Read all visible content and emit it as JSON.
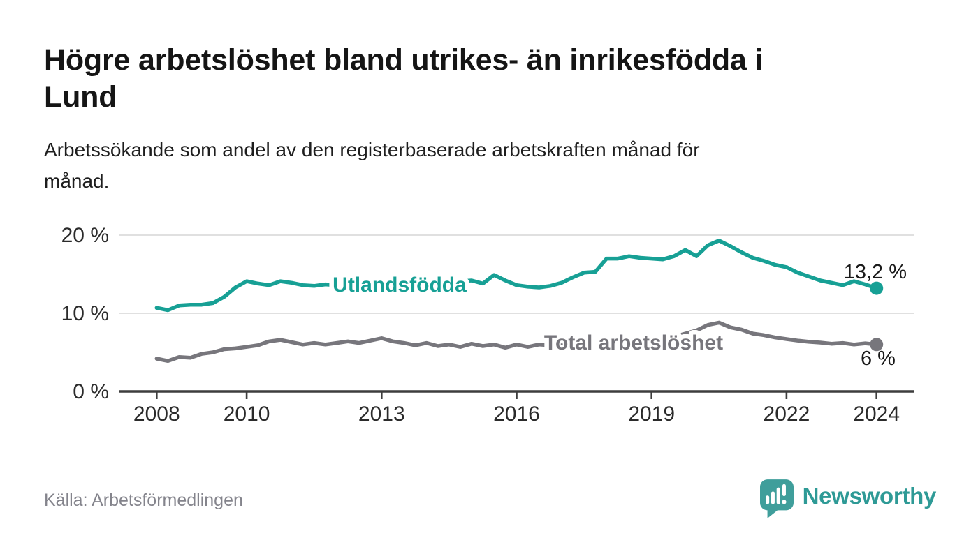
{
  "page": {
    "title": "Högre arbetslöshet bland utrikes- än inrikesfödda i Lund",
    "title_lines": [
      "Högre arbetslöshet bland utrikes- än inrikesfödda i",
      "Lund"
    ],
    "subtitle_lines": [
      "Arbetssökande som andel av den registerbaserade arbetskraften månad för",
      "månad."
    ],
    "source": "Källa: Arbetsförmedlingen",
    "logo_text": "Newsworthy"
  },
  "colors": {
    "series_foreign_born": "#17a095",
    "series_total": "#77767c",
    "axis": "#3d3d3d",
    "grid": "#dcdcdc",
    "end_label_text": "#1a1a1a",
    "logo_teal": "#3f9e9b",
    "logo_text_teal": "#2e9a96"
  },
  "chart_data": {
    "type": "line",
    "title": "Högre arbetslöshet bland utrikes- än inrikesfödda i Lund",
    "subtitle": "Arbetssökande som andel av den registerbaserade arbetskraften månad för månad.",
    "unit": "%",
    "xlabel": "",
    "ylabel": "",
    "x_range": [
      2007.2,
      2024.9
    ],
    "ylim": [
      0,
      20
    ],
    "grid": "horizontal",
    "legend_position": "inline-labels",
    "x_ticks": [
      {
        "v": 2008,
        "label": "2008"
      },
      {
        "v": 2010,
        "label": "2010"
      },
      {
        "v": 2013,
        "label": "2013"
      },
      {
        "v": 2016,
        "label": "2016"
      },
      {
        "v": 2019,
        "label": "2019"
      },
      {
        "v": 2022,
        "label": "2022"
      },
      {
        "v": 2024,
        "label": "2024"
      }
    ],
    "y_ticks": [
      {
        "v": 0,
        "label": "0 %"
      },
      {
        "v": 10,
        "label": "10 %"
      },
      {
        "v": 20,
        "label": "20 %"
      }
    ],
    "series": [
      {
        "name": "Utlandsfödda",
        "color": "#17a095",
        "end_label": "13,2 %",
        "last_value": 13.2,
        "points": [
          [
            2008,
            10.7
          ],
          [
            2008.25,
            10.4
          ],
          [
            2008.5,
            11
          ],
          [
            2008.75,
            11.1
          ],
          [
            2009,
            11.1
          ],
          [
            2009.25,
            11.3
          ],
          [
            2009.5,
            12.1
          ],
          [
            2009.75,
            13.3
          ],
          [
            2010,
            14.1
          ],
          [
            2010.25,
            13.8
          ],
          [
            2010.5,
            13.6
          ],
          [
            2010.75,
            14.1
          ],
          [
            2011,
            13.9
          ],
          [
            2011.25,
            13.6
          ],
          [
            2011.5,
            13.5
          ],
          [
            2011.75,
            13.7
          ],
          [
            2012,
            13.6
          ],
          [
            2012.25,
            13.4
          ],
          [
            2012.5,
            13.6
          ],
          [
            2012.75,
            13.5
          ],
          [
            2013,
            13.7
          ],
          [
            2013.25,
            13.6
          ],
          [
            2013.5,
            13.8
          ],
          [
            2013.75,
            13.7
          ],
          [
            2014,
            13.9
          ],
          [
            2014.25,
            13.8
          ],
          [
            2014.5,
            14
          ],
          [
            2014.75,
            14.1
          ],
          [
            2015,
            14.2
          ],
          [
            2015.25,
            13.8
          ],
          [
            2015.5,
            14.9
          ],
          [
            2015.75,
            14.2
          ],
          [
            2016,
            13.6
          ],
          [
            2016.25,
            13.4
          ],
          [
            2016.5,
            13.3
          ],
          [
            2016.75,
            13.5
          ],
          [
            2017,
            13.9
          ],
          [
            2017.25,
            14.6
          ],
          [
            2017.5,
            15.2
          ],
          [
            2017.75,
            15.3
          ],
          [
            2018,
            17
          ],
          [
            2018.25,
            17
          ],
          [
            2018.5,
            17.3
          ],
          [
            2018.75,
            17.1
          ],
          [
            2019,
            17
          ],
          [
            2019.25,
            16.9
          ],
          [
            2019.5,
            17.3
          ],
          [
            2019.75,
            18.1
          ],
          [
            2020,
            17.3
          ],
          [
            2020.25,
            18.7
          ],
          [
            2020.5,
            19.3
          ],
          [
            2020.75,
            18.6
          ],
          [
            2021,
            17.8
          ],
          [
            2021.25,
            17.1
          ],
          [
            2021.5,
            16.7
          ],
          [
            2021.75,
            16.2
          ],
          [
            2022,
            15.9
          ],
          [
            2022.25,
            15.2
          ],
          [
            2022.5,
            14.7
          ],
          [
            2022.75,
            14.2
          ],
          [
            2023,
            13.9
          ],
          [
            2023.25,
            13.6
          ],
          [
            2023.5,
            14.1
          ],
          [
            2023.75,
            13.7
          ],
          [
            2024,
            13.2
          ]
        ]
      },
      {
        "name": "Total arbetslöshet",
        "color": "#77767c",
        "end_label": "6 %",
        "last_value": 6.0,
        "points": [
          [
            2008,
            4.2
          ],
          [
            2008.25,
            3.9
          ],
          [
            2008.5,
            4.4
          ],
          [
            2008.75,
            4.3
          ],
          [
            2009,
            4.8
          ],
          [
            2009.25,
            5
          ],
          [
            2009.5,
            5.4
          ],
          [
            2009.75,
            5.5
          ],
          [
            2010,
            5.7
          ],
          [
            2010.25,
            5.9
          ],
          [
            2010.5,
            6.4
          ],
          [
            2010.75,
            6.6
          ],
          [
            2011,
            6.3
          ],
          [
            2011.25,
            6
          ],
          [
            2011.5,
            6.2
          ],
          [
            2011.75,
            6
          ],
          [
            2012,
            6.2
          ],
          [
            2012.25,
            6.4
          ],
          [
            2012.5,
            6.2
          ],
          [
            2012.75,
            6.5
          ],
          [
            2013,
            6.8
          ],
          [
            2013.25,
            6.4
          ],
          [
            2013.5,
            6.2
          ],
          [
            2013.75,
            5.9
          ],
          [
            2014,
            6.2
          ],
          [
            2014.25,
            5.8
          ],
          [
            2014.5,
            6
          ],
          [
            2014.75,
            5.7
          ],
          [
            2015,
            6.1
          ],
          [
            2015.25,
            5.8
          ],
          [
            2015.5,
            6
          ],
          [
            2015.75,
            5.6
          ],
          [
            2016,
            6
          ],
          [
            2016.25,
            5.7
          ],
          [
            2016.5,
            6
          ],
          [
            2016.75,
            5.9
          ],
          [
            2017,
            6
          ],
          [
            2017.25,
            5.9
          ],
          [
            2017.5,
            6.1
          ],
          [
            2017.75,
            6.2
          ],
          [
            2018,
            6.3
          ],
          [
            2018.25,
            6.3
          ],
          [
            2018.5,
            6.4
          ],
          [
            2018.75,
            6.5
          ],
          [
            2019,
            6.6
          ],
          [
            2019.25,
            6.7
          ],
          [
            2019.5,
            7
          ],
          [
            2019.75,
            7.4
          ],
          [
            2020,
            7.8
          ],
          [
            2020.25,
            8.5
          ],
          [
            2020.5,
            8.8
          ],
          [
            2020.75,
            8.2
          ],
          [
            2021,
            7.9
          ],
          [
            2021.25,
            7.4
          ],
          [
            2021.5,
            7.2
          ],
          [
            2021.75,
            6.9
          ],
          [
            2022,
            6.7
          ],
          [
            2022.25,
            6.5
          ],
          [
            2022.5,
            6.35
          ],
          [
            2022.75,
            6.25
          ],
          [
            2023,
            6.1
          ],
          [
            2023.25,
            6.2
          ],
          [
            2023.5,
            6
          ],
          [
            2023.75,
            6.15
          ],
          [
            2024,
            6
          ]
        ]
      }
    ]
  }
}
